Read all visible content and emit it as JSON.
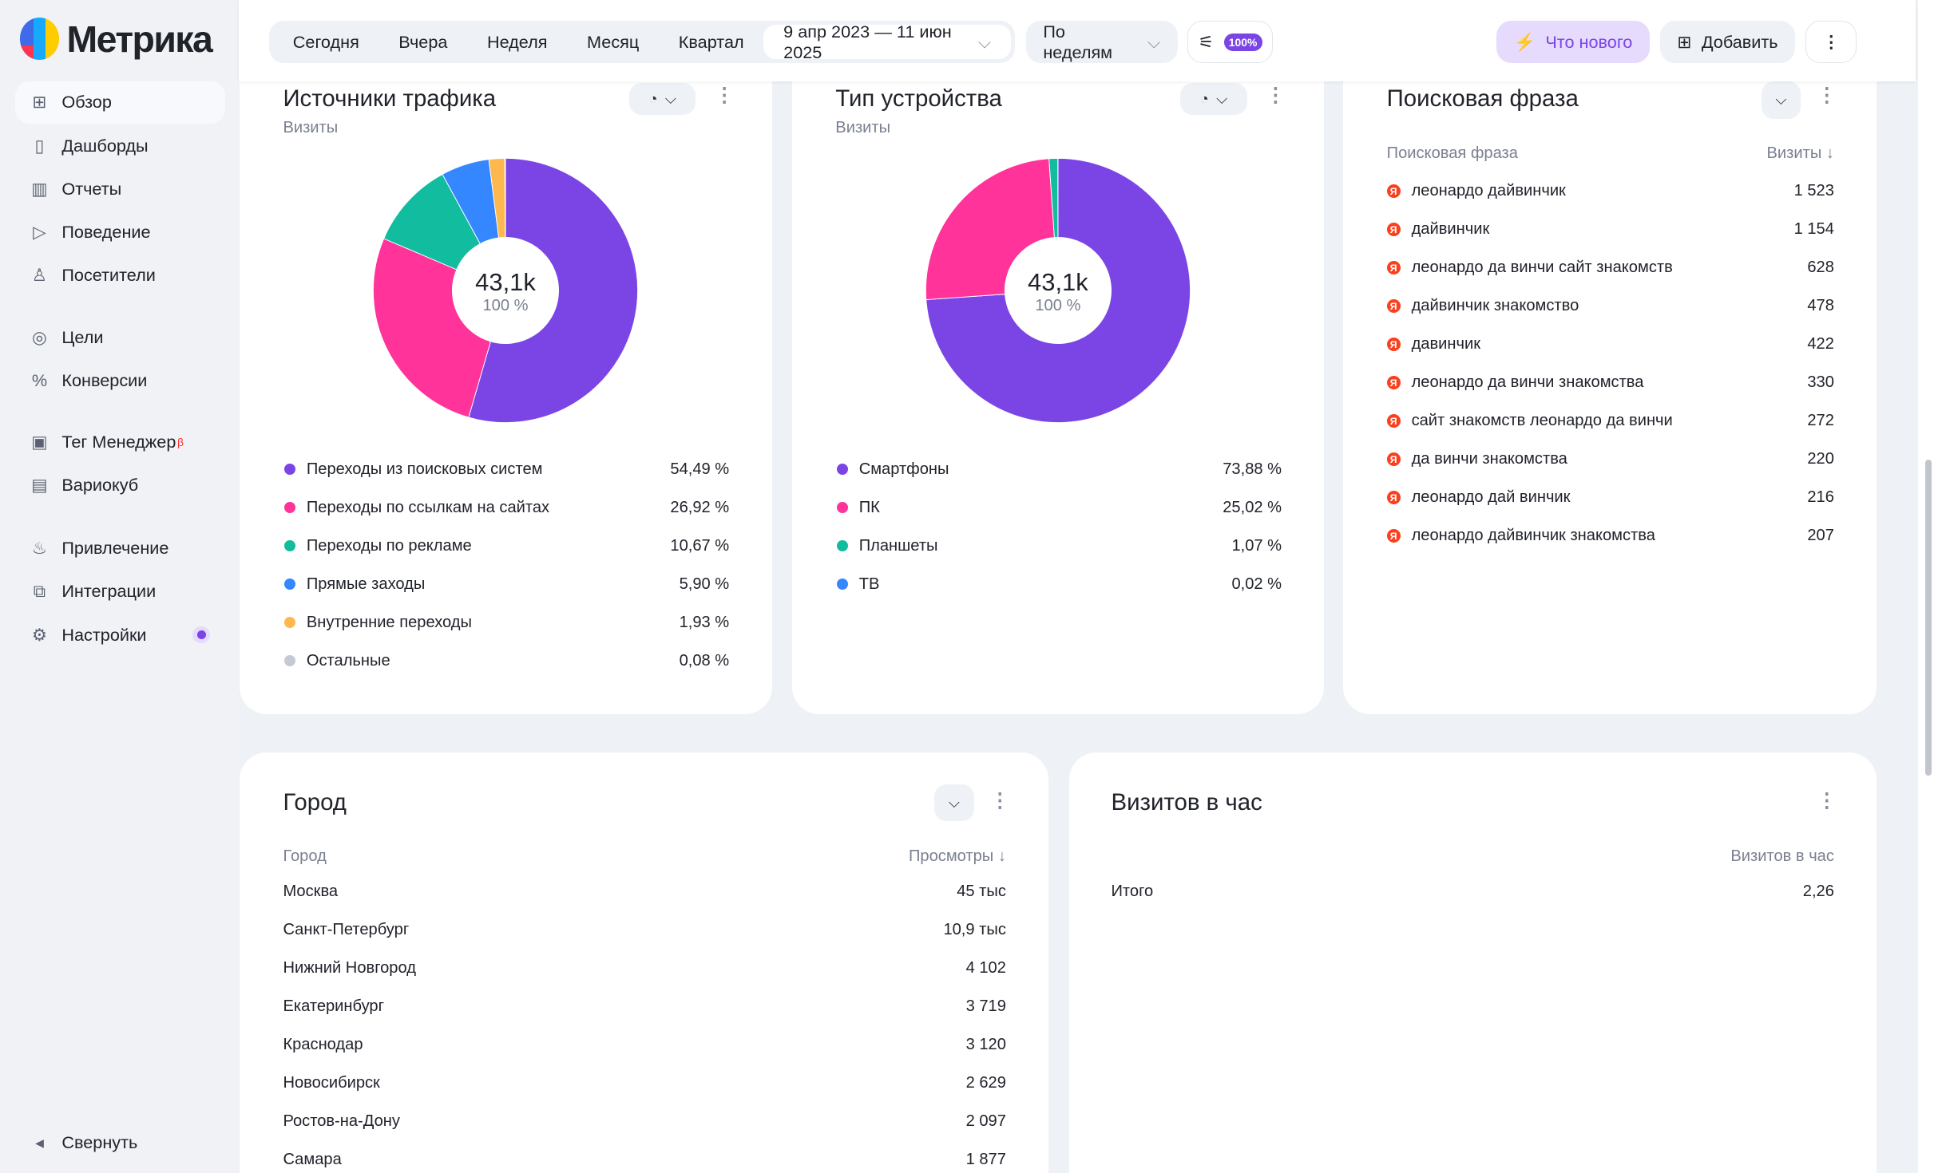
{
  "app": {
    "logo": "Метрика"
  },
  "sidebar": {
    "items": [
      {
        "label": "Обзор",
        "icon": "grid-icon",
        "glyph": "⊞",
        "active": true
      },
      {
        "label": "Дашборды",
        "icon": "dashboards-icon",
        "glyph": "▯"
      },
      {
        "label": "Отчеты",
        "icon": "bar-chart-icon",
        "glyph": "▥"
      },
      {
        "label": "Поведение",
        "icon": "play-icon",
        "glyph": "▷"
      },
      {
        "label": "Посетители",
        "icon": "user-icon",
        "glyph": "♙"
      },
      {
        "label": "Цели",
        "icon": "target-icon",
        "glyph": "◎"
      },
      {
        "label": "Конверсии",
        "icon": "percent-icon",
        "glyph": "%"
      },
      {
        "label": "Тег Менеджер",
        "icon": "tag-manager-icon",
        "glyph": "▣",
        "badge": "β"
      },
      {
        "label": "Вариокуб",
        "icon": "variocube-icon",
        "glyph": "▤"
      },
      {
        "label": "Привлечение",
        "icon": "flame-icon",
        "glyph": "♨"
      },
      {
        "label": "Интеграции",
        "icon": "puzzle-icon",
        "glyph": "⧉"
      },
      {
        "label": "Настройки",
        "icon": "gear-icon",
        "glyph": "⚙"
      }
    ],
    "collapse": "Свернуть"
  },
  "header": {
    "periods": [
      "Сегодня",
      "Вчера",
      "Неделя",
      "Месяц",
      "Квартал"
    ],
    "date_range": "9 апр 2023 — 11 июн 2025",
    "grouping": "По неделям",
    "sampling": "100%",
    "whats_new": "Что нового",
    "add": "Добавить"
  },
  "traffic": {
    "title": "Источники трафика",
    "subtitle": "Визиты",
    "total": "43,1k",
    "total_pct": "100 %",
    "items": [
      {
        "label": "Переходы из поисковых систем",
        "pct": "54,49 %",
        "value": 54.49,
        "color": "#7b45e6"
      },
      {
        "label": "Переходы по ссылкам на сайтах",
        "pct": "26,92 %",
        "value": 26.92,
        "color": "#ff3399"
      },
      {
        "label": "Переходы по рекламе",
        "pct": "10,67 %",
        "value": 10.67,
        "color": "#12bd9f"
      },
      {
        "label": "Прямые заходы",
        "pct": "5,90 %",
        "value": 5.9,
        "color": "#3587ff"
      },
      {
        "label": "Внутренние переходы",
        "pct": "1,93 %",
        "value": 1.93,
        "color": "#ffb84d"
      },
      {
        "label": "Остальные",
        "pct": "0,08 %",
        "value": 0.08,
        "color": "#c4c9d4"
      }
    ]
  },
  "devices": {
    "title": "Тип устройства",
    "subtitle": "Визиты",
    "total": "43,1k",
    "total_pct": "100 %",
    "items": [
      {
        "label": "Смартфоны",
        "pct": "73,88 %",
        "value": 73.88,
        "color": "#7b45e6"
      },
      {
        "label": "ПК",
        "pct": "25,02 %",
        "value": 25.02,
        "color": "#ff3399"
      },
      {
        "label": "Планшеты",
        "pct": "1,07 %",
        "value": 1.07,
        "color": "#12bd9f"
      },
      {
        "label": "ТВ",
        "pct": "0,02 %",
        "value": 0.02,
        "color": "#3587ff"
      }
    ]
  },
  "phrases": {
    "title": "Поисковая фраза",
    "col1": "Поисковая фраза",
    "col2": "Визиты ↓",
    "rows": [
      [
        "леонардо дайвинчик",
        "1 523"
      ],
      [
        "дайвинчик",
        "1 154"
      ],
      [
        "леонардо да винчи сайт знакомств",
        "628"
      ],
      [
        "дайвинчик знакомство",
        "478"
      ],
      [
        "давинчик",
        "422"
      ],
      [
        "леонардо да винчи знакомства",
        "330"
      ],
      [
        "сайт знакомств леонардо да винчи",
        "272"
      ],
      [
        "да винчи знакомства",
        "220"
      ],
      [
        "леонардо дай винчик",
        "216"
      ],
      [
        "леонардо дайвинчик знакомства",
        "207"
      ]
    ]
  },
  "city": {
    "title": "Город",
    "col1": "Город",
    "col2": "Просмотры ↓",
    "rows": [
      [
        "Москва",
        "45 тыс"
      ],
      [
        "Санкт-Петербург",
        "10,9 тыс"
      ],
      [
        "Нижний Новгород",
        "4 102"
      ],
      [
        "Екатеринбург",
        "3 719"
      ],
      [
        "Краснодар",
        "3 120"
      ],
      [
        "Новосибирск",
        "2 629"
      ],
      [
        "Ростов-на-Дону",
        "2 097"
      ],
      [
        "Самара",
        "1 877"
      ]
    ]
  },
  "hourly": {
    "title": "Визитов в час",
    "col2": "Визитов в час",
    "total_label": "Итого",
    "total_value": "2,26"
  }
}
